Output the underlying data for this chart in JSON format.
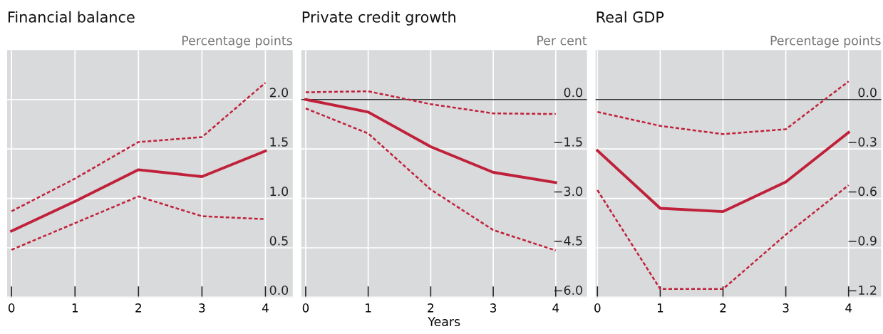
{
  "chart_data": [
    {
      "type": "line",
      "title": "Financial balance",
      "ylabel": "Percentage points",
      "x": [
        0,
        1,
        2,
        3,
        4
      ],
      "xlim": [
        -0.07,
        4.43
      ],
      "xticks": [
        0,
        1,
        2,
        3,
        4
      ],
      "ylim": [
        0,
        2.5
      ],
      "yticks": [
        {
          "value": 0,
          "label": "0.0"
        },
        0.5,
        {
          "value": 1,
          "label": "1.0"
        },
        1.5,
        {
          "value": 2,
          "label": "2.0"
        }
      ],
      "grid": true,
      "legend": false,
      "marker": "none",
      "series": [
        {
          "color": "#c0213a",
          "line_style": "solid",
          "values": [
            0.67,
            0.97,
            1.29,
            1.22,
            1.48
          ]
        },
        {
          "color": "#c0213a",
          "line_style": "dashed",
          "values": [
            0.87,
            1.2,
            1.57,
            1.62,
            2.17
          ]
        },
        {
          "color": "#c0213a",
          "line_style": "dashed",
          "values": [
            0.48,
            0.75,
            1.02,
            0.82,
            0.79
          ]
        }
      ]
    },
    {
      "type": "line",
      "title": "Private credit growth",
      "ylabel": "Per cent",
      "xlabel": "Years",
      "x": [
        0,
        1,
        2,
        3,
        4
      ],
      "xlim": [
        -0.07,
        4.5
      ],
      "xticks": [
        0,
        1,
        2,
        3,
        4
      ],
      "ylim": [
        -6,
        1.5
      ],
      "yticks": [
        {
          "value": -6,
          "label": "−6.0"
        },
        {
          "value": -4.5,
          "label": "−4.5"
        },
        {
          "value": -3,
          "label": "−3.0"
        },
        {
          "value": -1.5,
          "label": "−1.5"
        },
        {
          "value": 0,
          "label": "0.0"
        }
      ],
      "grid": true,
      "legend": false,
      "marker": "none",
      "ref_lines": [
        {
          "axis": "y",
          "value": 0,
          "color": "#333333"
        }
      ],
      "series": [
        {
          "color": "#c0213a",
          "line_style": "solid",
          "values": [
            0,
            -0.38,
            -1.43,
            -2.21,
            -2.52
          ]
        },
        {
          "color": "#c0213a",
          "line_style": "dashed",
          "values": [
            0.22,
            0.25,
            -0.14,
            -0.42,
            -0.44
          ]
        },
        {
          "color": "#c0213a",
          "line_style": "dashed",
          "values": [
            -0.27,
            -1.03,
            -2.73,
            -3.96,
            -4.58
          ]
        }
      ]
    },
    {
      "type": "line",
      "title": "Real GDP",
      "ylabel": "Percentage points",
      "x": [
        0,
        1,
        2,
        3,
        4
      ],
      "xlim": [
        -0.03,
        4.52
      ],
      "xticks": [
        0,
        1,
        2,
        3,
        4
      ],
      "ylim": [
        -1.2,
        0.3
      ],
      "yticks": [
        {
          "value": -1.2,
          "label": "−1.2"
        },
        {
          "value": -0.9,
          "label": "−0.9"
        },
        {
          "value": -0.6,
          "label": "−0.6"
        },
        {
          "value": -0.3,
          "label": "−0.3"
        },
        {
          "value": 0,
          "label": "0.0"
        }
      ],
      "grid": true,
      "legend": false,
      "marker": "none",
      "ref_lines": [
        {
          "axis": "y",
          "value": 0,
          "color": "#333333"
        }
      ],
      "series": [
        {
          "color": "#c0213a",
          "line_style": "solid",
          "values": [
            -0.31,
            -0.66,
            -0.68,
            -0.5,
            -0.2
          ]
        },
        {
          "color": "#c0213a",
          "line_style": "dashed",
          "values": [
            -0.075,
            -0.16,
            -0.21,
            -0.18,
            0.11
          ]
        },
        {
          "color": "#c0213a",
          "line_style": "dashed",
          "values": [
            -0.55,
            -1.15,
            -1.15,
            -0.82,
            -0.52
          ]
        }
      ]
    }
  ]
}
